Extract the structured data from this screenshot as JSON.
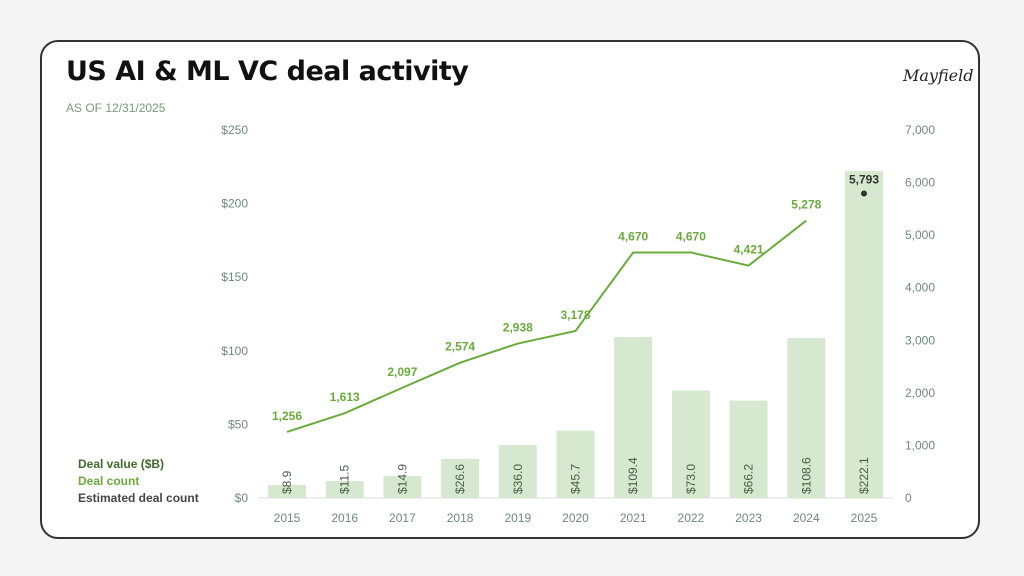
{
  "title": "US AI & ML VC deal activity",
  "subtitle": "AS OF 12/31/2025",
  "logo": "Mayfield",
  "legend": {
    "deal_value": "Deal value ($B)",
    "deal_count": "Deal count",
    "estimated": "Estimated deal count"
  },
  "colors": {
    "bar": "#d6e8cf",
    "line": "#6aab3c",
    "legend_value": "#3f6b2a",
    "estimated": "#333333"
  },
  "chart_data": {
    "type": "bar+line",
    "categories": [
      "2015",
      "2016",
      "2017",
      "2018",
      "2019",
      "2020",
      "2021",
      "2022",
      "2023",
      "2024",
      "2025"
    ],
    "series": [
      {
        "name": "Deal value ($B)",
        "type": "bar",
        "axis": "left",
        "values": [
          8.9,
          11.5,
          14.9,
          26.6,
          36.0,
          45.7,
          109.4,
          73.0,
          66.2,
          108.6,
          222.1
        ],
        "labels": [
          "$8.9",
          "$11.5",
          "$14.9",
          "$26.6",
          "$36.0",
          "$45.7",
          "$109.4",
          "$73.0",
          "$66.2",
          "$108.6",
          "$222.1"
        ]
      },
      {
        "name": "Deal count",
        "type": "line",
        "axis": "right",
        "values": [
          1256,
          1613,
          2097,
          2574,
          2938,
          3178,
          4670,
          4670,
          4421,
          5278,
          null
        ],
        "labels": [
          "1,256",
          "1,613",
          "2,097",
          "2,574",
          "2,938",
          "3,178",
          "4,670",
          "4,670",
          "4,421",
          "5,278",
          ""
        ]
      },
      {
        "name": "Estimated deal count",
        "type": "scatter",
        "axis": "right",
        "values": [
          null,
          null,
          null,
          null,
          null,
          null,
          null,
          null,
          null,
          null,
          5793
        ],
        "labels": [
          "",
          "",
          "",
          "",
          "",
          "",
          "",
          "",
          "",
          "",
          "5,793"
        ]
      }
    ],
    "left_axis": {
      "ylim": [
        0,
        250
      ],
      "ticks": [
        "$0",
        "$50",
        "$100",
        "$150",
        "$200",
        "$250"
      ]
    },
    "right_axis": {
      "ylim": [
        0,
        7000
      ],
      "ticks": [
        "0",
        "1,000",
        "2,000",
        "3,000",
        "4,000",
        "5,000",
        "6,000",
        "7,000"
      ]
    },
    "grid": false,
    "legend_placement": "bottom-left"
  }
}
